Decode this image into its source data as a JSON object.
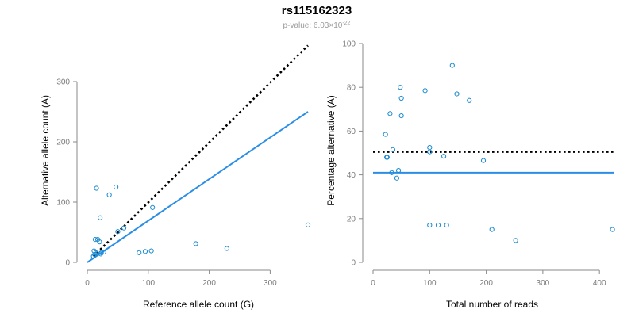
{
  "title": "rs115162323",
  "subtitle": {
    "prefix": "p-value: 6.03×10",
    "exponent": "-22"
  },
  "colors": {
    "points": "#1a8ad1",
    "fit": "#2b8ee6",
    "reference": "#000000",
    "axis": "#8a8a8a",
    "subtitle": "#9a9a9a"
  },
  "chart_data": [
    {
      "type": "scatter",
      "xlabel": "Reference allele count (G)",
      "ylabel": "Alternative allele count (A)",
      "xlim": [
        0,
        362
      ],
      "ylim": [
        0,
        300
      ],
      "xticks": [
        0,
        100,
        200,
        300
      ],
      "yticks": [
        0,
        100,
        200,
        300
      ],
      "points": [
        [
          10,
          10
        ],
        [
          12,
          13
        ],
        [
          14,
          16
        ],
        [
          11,
          19
        ],
        [
          16,
          14
        ],
        [
          13,
          38
        ],
        [
          17,
          38
        ],
        [
          20,
          34
        ],
        [
          22,
          14
        ],
        [
          23,
          16
        ],
        [
          27,
          17
        ],
        [
          15,
          123
        ],
        [
          21,
          74
        ],
        [
          36,
          112
        ],
        [
          47,
          125
        ],
        [
          50,
          51
        ],
        [
          60,
          57
        ],
        [
          85,
          16
        ],
        [
          95,
          18
        ],
        [
          105,
          19
        ],
        [
          107,
          91
        ],
        [
          178,
          31
        ],
        [
          229,
          23
        ],
        [
          362,
          62
        ]
      ],
      "lines": [
        {
          "kind": "fit",
          "style": "solid",
          "from": [
            0,
            0
          ],
          "to": [
            362,
            250
          ]
        },
        {
          "kind": "reference",
          "style": "dotted",
          "from": [
            10,
            10
          ],
          "to": [
            362,
            360
          ]
        }
      ]
    },
    {
      "type": "scatter",
      "xlabel": "Total number of reads",
      "ylabel": "Percentage alternative (A)",
      "xlim": [
        0,
        425
      ],
      "ylim": [
        0,
        100
      ],
      "xticks": [
        0,
        100,
        200,
        300,
        400
      ],
      "yticks": [
        0,
        20,
        40,
        60,
        80,
        100
      ],
      "points": [
        [
          22,
          58.5
        ],
        [
          24,
          48
        ],
        [
          25,
          48
        ],
        [
          30,
          68
        ],
        [
          33,
          41
        ],
        [
          35,
          51.5
        ],
        [
          42,
          38.5
        ],
        [
          45,
          42
        ],
        [
          48,
          80
        ],
        [
          50,
          75
        ],
        [
          50,
          67
        ],
        [
          92,
          78.5
        ],
        [
          100,
          52.5
        ],
        [
          100,
          50.5
        ],
        [
          100,
          17
        ],
        [
          115,
          17
        ],
        [
          125,
          48.5
        ],
        [
          130,
          17
        ],
        [
          140,
          90
        ],
        [
          148,
          77
        ],
        [
          170,
          74
        ],
        [
          195,
          46.5
        ],
        [
          210,
          15
        ],
        [
          252,
          10
        ],
        [
          423,
          15
        ]
      ],
      "lines": [
        {
          "kind": "fit",
          "style": "solid",
          "from": [
            0,
            41
          ],
          "to": [
            425,
            41
          ]
        },
        {
          "kind": "reference",
          "style": "dotted",
          "from": [
            0,
            50.5
          ],
          "to": [
            425,
            50.5
          ]
        }
      ]
    }
  ]
}
